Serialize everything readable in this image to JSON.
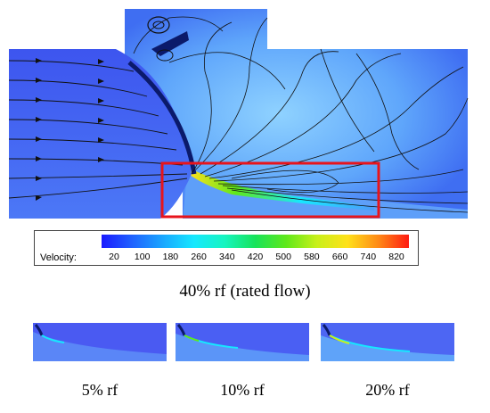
{
  "figure": {
    "legend": {
      "label": "Velocity:",
      "ticks": [
        "20",
        "100",
        "180",
        "260",
        "340",
        "420",
        "500",
        "580",
        "660",
        "740",
        "820"
      ],
      "colors": [
        "#1a1aff",
        "#1f62ff",
        "#19a7ff",
        "#16e8ff",
        "#16f5c0",
        "#17e35a",
        "#5fe81b",
        "#c8f01a",
        "#ffe11a",
        "#ff8a16",
        "#ff1b12"
      ]
    },
    "main_caption": "40% rf (rated flow)",
    "highlight_color": "#e8141b",
    "thumbnails": [
      {
        "caption": "5% rf"
      },
      {
        "caption": "10% rf"
      },
      {
        "caption": "20% rf"
      }
    ]
  }
}
